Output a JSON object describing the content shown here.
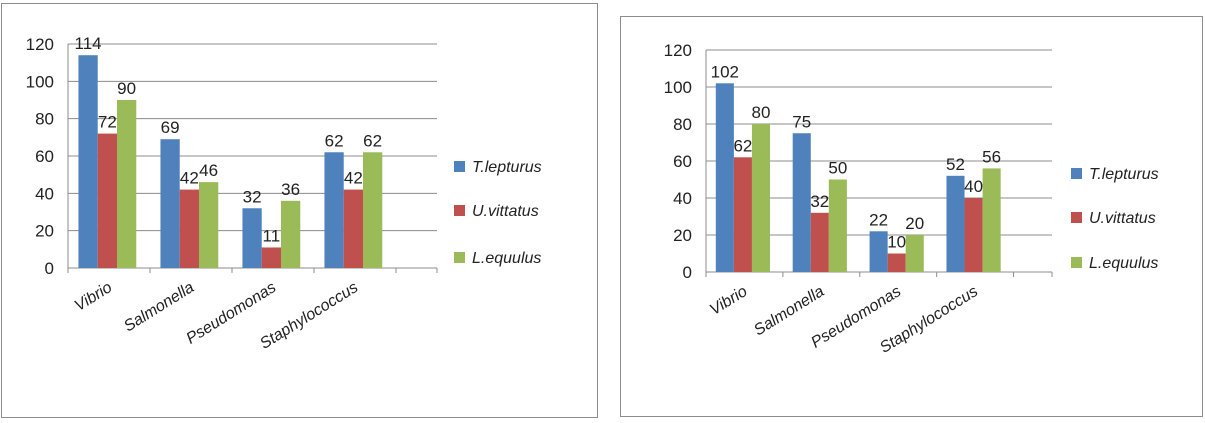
{
  "chart_data": [
    {
      "type": "bar",
      "categories": [
        "Vibrio",
        "Salmonella",
        "Pseudomonas",
        "Staphylococcus"
      ],
      "series": [
        {
          "name": "T.lepturus",
          "values": [
            114,
            69,
            32,
            62
          ]
        },
        {
          "name": "U.vittatus",
          "values": [
            72,
            42,
            11,
            42
          ]
        },
        {
          "name": "L.equulus",
          "values": [
            90,
            46,
            36,
            62
          ]
        }
      ],
      "yticks": [
        0,
        20,
        40,
        60,
        80,
        100,
        120
      ],
      "ylim": [
        0,
        120
      ],
      "grid": true,
      "legend": "right",
      "colors": [
        "#4f81bd",
        "#c0504d",
        "#9bbb59"
      ],
      "title": "",
      "xlabel": "",
      "ylabel": ""
    },
    {
      "type": "bar",
      "categories": [
        "Vibrio",
        "Salmonella",
        "Pseudomonas",
        "Staphylococcus"
      ],
      "series": [
        {
          "name": "T.lepturus",
          "values": [
            102,
            75,
            22,
            52
          ]
        },
        {
          "name": "U.vittatus",
          "values": [
            62,
            32,
            10,
            40
          ]
        },
        {
          "name": "L.equulus",
          "values": [
            80,
            50,
            20,
            56
          ]
        }
      ],
      "yticks": [
        0,
        20,
        40,
        60,
        80,
        100,
        120
      ],
      "ylim": [
        0,
        120
      ],
      "grid": true,
      "legend": "right",
      "colors": [
        "#4f81bd",
        "#c0504d",
        "#9bbb59"
      ],
      "title": "",
      "xlabel": "",
      "ylabel": ""
    }
  ]
}
